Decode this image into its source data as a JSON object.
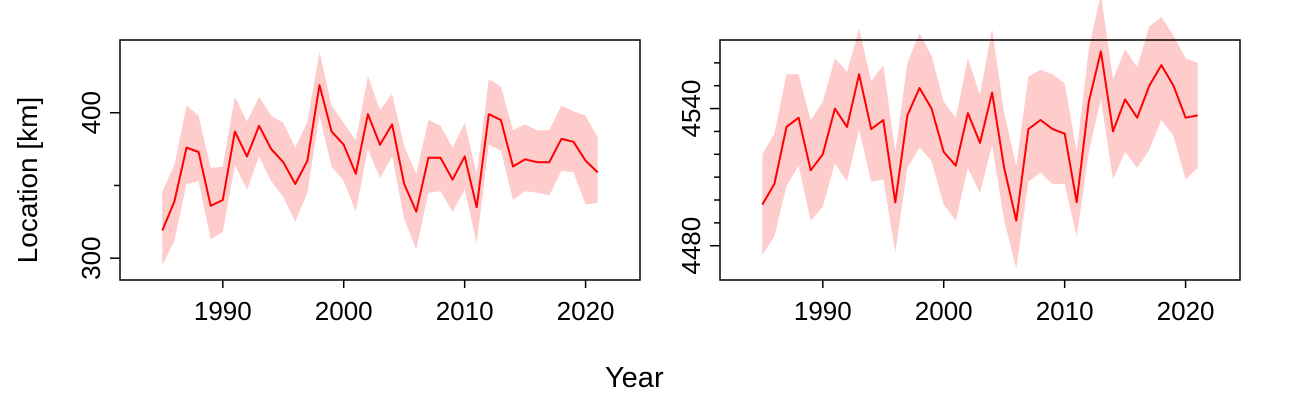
{
  "colors": {
    "line": "#ff0000",
    "band": "#ffcccc",
    "axis": "#000000",
    "background": "#ffffff"
  },
  "labels": {
    "xlabel": "Year",
    "ylabel": "Location [km]"
  },
  "chart_data": [
    {
      "type": "line",
      "title": "",
      "xlabel": "Year",
      "ylabel": "Location [km]",
      "xlim": [
        1981.5,
        2024.5
      ],
      "ylim": [
        285,
        450
      ],
      "xticks": [
        1990,
        2000,
        2010,
        2020
      ],
      "yticks": [
        300,
        400
      ],
      "yminor_ticks": [
        350
      ],
      "grid": false,
      "legend": "none",
      "x": [
        1985,
        1986,
        1987,
        1988,
        1989,
        1990,
        1991,
        1992,
        1993,
        1994,
        1995,
        1996,
        1997,
        1998,
        1999,
        2000,
        2001,
        2002,
        2003,
        2004,
        2005,
        2006,
        2007,
        2008,
        2009,
        2010,
        2011,
        2012,
        2013,
        2014,
        2015,
        2016,
        2017,
        2018,
        2019,
        2020,
        2021
      ],
      "series": [
        {
          "values": [
            319,
            339,
            376,
            373,
            336,
            340,
            387,
            370,
            391,
            375,
            366,
            351,
            367,
            419,
            387,
            378,
            358,
            399,
            378,
            392,
            351,
            332,
            369,
            369,
            354,
            370,
            335,
            399,
            395,
            363,
            368,
            366,
            366,
            382,
            380,
            367,
            359
          ],
          "lower": [
            295,
            312,
            351,
            353,
            313,
            318,
            364,
            347,
            370,
            353,
            342,
            325,
            345,
            398,
            363,
            353,
            332,
            375,
            355,
            370,
            327,
            306,
            345,
            346,
            332,
            347,
            310,
            378,
            374,
            340,
            346,
            345,
            343,
            360,
            359,
            337,
            338
          ],
          "upper": [
            346,
            364,
            405,
            398,
            362,
            363,
            411,
            394,
            411,
            398,
            393,
            376,
            394,
            442,
            405,
            393,
            381,
            425,
            402,
            413,
            377,
            358,
            395,
            391,
            376,
            393,
            358,
            423,
            418,
            388,
            392,
            388,
            388,
            405,
            401,
            398,
            383
          ]
        }
      ]
    },
    {
      "type": "line",
      "title": "",
      "xlabel": "Year",
      "ylabel": "",
      "xlim": [
        1981.5,
        2024.5
      ],
      "ylim": [
        4465,
        4570
      ],
      "xticks": [
        1990,
        2000,
        2010,
        2020
      ],
      "yticks": [
        4480,
        4540
      ],
      "yminor_ticks": [
        4490,
        4500,
        4510,
        4520,
        4530,
        4550,
        4560
      ],
      "grid": false,
      "legend": "none",
      "x": [
        1985,
        1986,
        1987,
        1988,
        1989,
        1990,
        1991,
        1992,
        1993,
        1994,
        1995,
        1996,
        1997,
        1998,
        1999,
        2000,
        2001,
        2002,
        2003,
        2004,
        2005,
        2006,
        2007,
        2008,
        2009,
        2010,
        2011,
        2012,
        2013,
        2014,
        2015,
        2016,
        2017,
        2018,
        2019,
        2020,
        2021
      ],
      "series": [
        {
          "values": [
            4498,
            4507,
            4532,
            4536,
            4513,
            4520,
            4540,
            4532,
            4555,
            4531,
            4535,
            4499,
            4537,
            4549,
            4540,
            4521,
            4515,
            4538,
            4525,
            4547,
            4514,
            4491,
            4531,
            4535,
            4531,
            4529,
            4499,
            4543,
            4565,
            4530,
            4544,
            4536,
            4550,
            4559,
            4550,
            4536,
            4537
          ],
          "lower": [
            4476,
            4484,
            4506,
            4515,
            4491,
            4497,
            4516,
            4508,
            4531,
            4508,
            4509,
            4477,
            4514,
            4523,
            4517,
            4498,
            4491,
            4514,
            4503,
            4524,
            4491,
            4470,
            4508,
            4512,
            4507,
            4507,
            4484,
            4521,
            4544,
            4509,
            4521,
            4514,
            4522,
            4535,
            4528,
            4509,
            4514
          ],
          "upper": [
            4520,
            4529,
            4555,
            4555,
            4535,
            4543,
            4562,
            4556,
            4575,
            4552,
            4559,
            4521,
            4560,
            4573,
            4563,
            4543,
            4536,
            4562,
            4546,
            4575,
            4538,
            4515,
            4554,
            4557,
            4555,
            4551,
            4521,
            4566,
            4590,
            4553,
            4566,
            4558,
            4576,
            4580,
            4572,
            4562,
            4560
          ]
        }
      ]
    }
  ]
}
